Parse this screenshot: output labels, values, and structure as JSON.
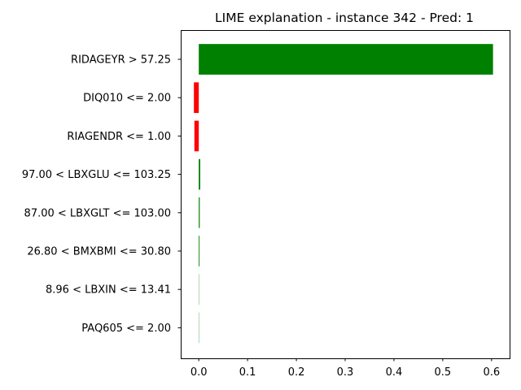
{
  "chart_data": {
    "type": "bar",
    "orientation": "horizontal",
    "title": "LIME explanation - instance 342 - Pred: 1",
    "xlabel": "",
    "ylabel": "",
    "categories": [
      "RIDAGEYR > 57.25",
      "DIQ010 <= 2.00",
      "RIAGENDR <= 1.00",
      "97.00 < LBXGLU <= 103.25",
      "87.00 < LBXGLT <= 103.00",
      "26.80 < BMXBMI <= 30.80",
      "8.96 < LBXIN <= 13.41",
      "PAQ605 <= 2.00"
    ],
    "values": [
      0.603,
      -0.01,
      -0.009,
      0.003,
      0.002,
      0.0015,
      0.0002,
      0.0001
    ],
    "xlim": [
      -0.037,
      0.637
    ],
    "xticks": [
      0.0,
      0.1,
      0.2,
      0.3,
      0.4,
      0.5,
      0.6
    ],
    "xtick_labels": [
      "0.0",
      "0.1",
      "0.2",
      "0.3",
      "0.4",
      "0.5",
      "0.6"
    ],
    "colors": {
      "positive": "#008000",
      "negative": "#ff0000"
    },
    "grid": false,
    "legend": "none"
  }
}
